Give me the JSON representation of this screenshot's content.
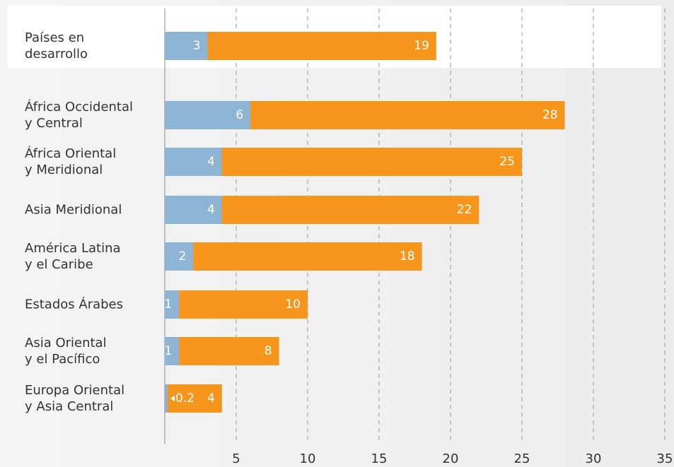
{
  "chart_data": {
    "type": "bar",
    "orientation": "horizontal",
    "overlap": true,
    "categories": [
      "Países en\ndesarrollo",
      "África Occidental\ny Central",
      "África Oriental\ny Meridional",
      "Asia Meridional",
      "América Latina\ny el Caribe",
      "Estados Árabes",
      "Asia Oriental\ny el Pacífico",
      "Europa Oriental\ny Asia Central"
    ],
    "series": [
      {
        "color": "#8db3d5",
        "values": [
          3,
          6,
          4,
          4,
          2,
          1,
          1,
          0.2
        ]
      },
      {
        "color": "#f7961d",
        "values": [
          19,
          28,
          25,
          22,
          18,
          10,
          8,
          4
        ]
      }
    ],
    "xlim": [
      0,
      35
    ],
    "xticks": [
      5,
      10,
      15,
      20,
      25,
      30,
      35
    ],
    "grid": true
  }
}
